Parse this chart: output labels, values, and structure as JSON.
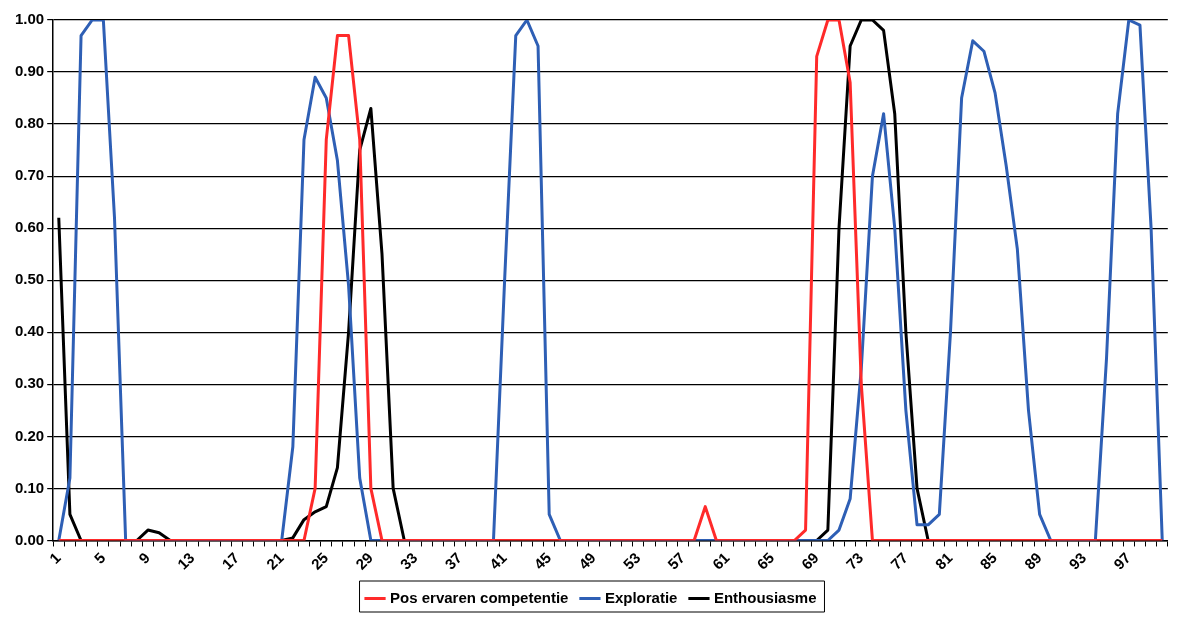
{
  "chart_data": {
    "type": "line",
    "categories": [
      "1",
      null,
      null,
      null,
      "5",
      null,
      null,
      null,
      "9",
      null,
      null,
      null,
      "13",
      null,
      null,
      null,
      "17",
      null,
      null,
      null,
      "21",
      null,
      null,
      null,
      "25",
      null,
      null,
      null,
      "29",
      null,
      null,
      null,
      "33",
      null,
      null,
      null,
      "37",
      null,
      null,
      null,
      "41",
      null,
      null,
      null,
      "45",
      null,
      null,
      null,
      "49",
      null,
      null,
      null,
      "53",
      null,
      null,
      null,
      "57",
      null,
      null,
      null,
      "61",
      null,
      null,
      null,
      "65",
      null,
      null,
      null,
      "69",
      null,
      null,
      null,
      "73",
      null,
      null,
      null,
      "77",
      null,
      null,
      null,
      "81",
      null,
      null,
      null,
      "85",
      null,
      null,
      null,
      "89",
      null,
      null,
      null,
      "93",
      null,
      null,
      null,
      "97",
      null,
      null,
      null
    ],
    "series": [
      {
        "name": "Pos ervaren competentie",
        "color": "#ff2a2a",
        "values": [
          0,
          0,
          0,
          0,
          0,
          0,
          0,
          0,
          0,
          0,
          0,
          0,
          0,
          0,
          0,
          0,
          0,
          0,
          0,
          0,
          0,
          0,
          0,
          0.1,
          0.77,
          0.97,
          0.97,
          0.77,
          0.1,
          0,
          0,
          0,
          0,
          0,
          0,
          0,
          0,
          0,
          0,
          0,
          0,
          0,
          0,
          0,
          0,
          0,
          0,
          0,
          0,
          0,
          0,
          0,
          0,
          0,
          0,
          0,
          0,
          0,
          0.065,
          0,
          0,
          0,
          0,
          0,
          0,
          0,
          0,
          0.02,
          0.93,
          1.0,
          1.0,
          0.88,
          0.3,
          0,
          0,
          0,
          0,
          0,
          0,
          0,
          0,
          0,
          0,
          0,
          0,
          0,
          0,
          0,
          0,
          0,
          0,
          0,
          0,
          0,
          0,
          0,
          0,
          0,
          0,
          0
        ]
      },
      {
        "name": "Exploratie",
        "color": "#2e5fb5",
        "values": [
          0,
          0.12,
          0.97,
          1.0,
          1.0,
          0.62,
          0,
          0,
          0,
          0,
          0,
          0,
          0,
          0,
          0,
          0,
          0,
          0,
          0,
          0,
          0,
          0.18,
          0.77,
          0.89,
          0.85,
          0.73,
          0.49,
          0.12,
          0,
          0,
          0,
          0,
          0,
          0,
          0,
          0,
          0,
          0,
          0,
          0,
          0.5,
          0.97,
          1.0,
          0.95,
          0.05,
          0,
          0,
          0,
          0,
          0,
          0,
          0,
          0,
          0,
          0,
          0,
          0,
          0,
          0,
          0,
          0,
          0,
          0,
          0,
          0,
          0,
          0,
          0,
          0,
          0,
          0.02,
          0.08,
          0.33,
          0.7,
          0.82,
          0.6,
          0.25,
          0.03,
          0.03,
          0.05,
          0.4,
          0.85,
          0.96,
          0.94,
          0.86,
          0.72,
          0.56,
          0.25,
          0.05,
          0,
          0,
          0,
          0,
          0,
          0.35,
          0.82,
          1.0,
          0.99,
          0.6,
          0
        ]
      },
      {
        "name": "Enthousiasme",
        "color": "#000000",
        "values": [
          0.62,
          0.05,
          0,
          0,
          0,
          0,
          0,
          0,
          0.02,
          0.015,
          0,
          0,
          0,
          0,
          0,
          0,
          0,
          0,
          0,
          0,
          0,
          0.005,
          0.04,
          0.055,
          0.065,
          0.14,
          0.4,
          0.75,
          0.83,
          0.55,
          0.1,
          0,
          0,
          0,
          0,
          0,
          0,
          0,
          0,
          0,
          0,
          0,
          0,
          0,
          0,
          0,
          0,
          0,
          0,
          0,
          0,
          0,
          0,
          0,
          0,
          0,
          0,
          0,
          0,
          0,
          0,
          0,
          0,
          0,
          0,
          0,
          0,
          0,
          0,
          0.02,
          0.6,
          0.95,
          1.0,
          1.0,
          0.98,
          0.82,
          0.4,
          0.1,
          0,
          0,
          0,
          0,
          0,
          0,
          0,
          0,
          0,
          0,
          0,
          0,
          0,
          0,
          0,
          0,
          0,
          0,
          0,
          0,
          0,
          0
        ]
      }
    ],
    "ylim": [
      0,
      1
    ],
    "yticks": [
      {
        "value": 0,
        "label": "0.00"
      },
      {
        "value": 0.1,
        "label": "0.10"
      },
      {
        "value": 0.2,
        "label": "0.20"
      },
      {
        "value": 0.3,
        "label": "0.30"
      },
      {
        "value": 0.4,
        "label": "0.40"
      },
      {
        "value": 0.5,
        "label": "0.50"
      },
      {
        "value": 0.6,
        "label": "0.60"
      },
      {
        "value": 0.7,
        "label": "0.70"
      },
      {
        "value": 0.8,
        "label": "0.80"
      },
      {
        "value": 0.9,
        "label": "0.90"
      },
      {
        "value": 1,
        "label": "1.00"
      }
    ],
    "grid": "y",
    "legend": "bottom"
  }
}
